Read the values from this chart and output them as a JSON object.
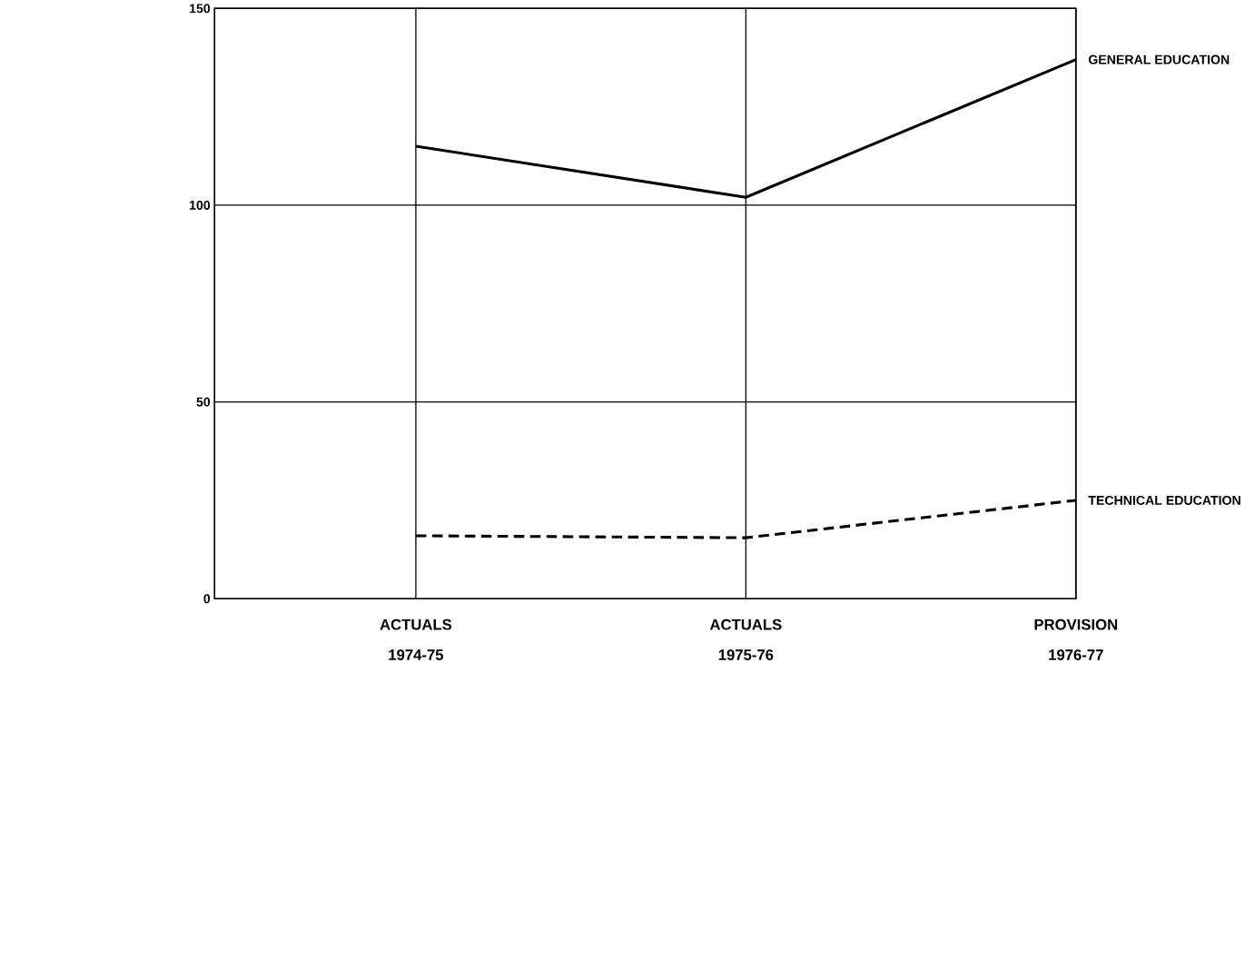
{
  "chart_data": {
    "type": "line",
    "categories": [
      "ACTUALS 1974-75",
      "ACTUALS 1975-76",
      "PROVISION 1976-77"
    ],
    "series": [
      {
        "name": "GENERAL EDUCATION",
        "color": "#000000",
        "values": [
          115,
          102,
          137
        ],
        "line_style": "solid"
      },
      {
        "name": "TECHNICAL EDUCATION",
        "color": "#000000",
        "values": [
          16,
          15.5,
          25
        ],
        "line_style": "dashed"
      }
    ],
    "ylim": [
      0,
      150
    ],
    "yticks": [
      0,
      50,
      100,
      150
    ],
    "grid": true
  }
}
